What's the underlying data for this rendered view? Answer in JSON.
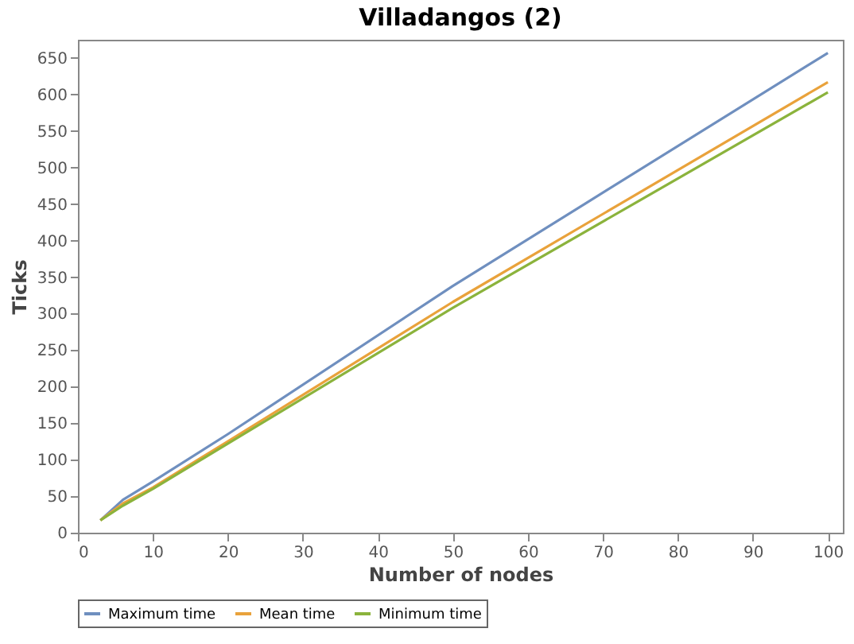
{
  "chart_data": {
    "type": "line",
    "title": "Villadangos (2)",
    "xlabel": "Number of nodes",
    "ylabel": "Ticks",
    "x": [
      3,
      6,
      10,
      20,
      50,
      100
    ],
    "series": [
      {
        "name": "Maximum time",
        "color": "#6f8fbf",
        "values": [
          17,
          45,
          70,
          135,
          338,
          657
        ]
      },
      {
        "name": "Mean time",
        "color": "#e9a23b",
        "values": [
          17,
          40,
          62,
          125,
          316,
          617
        ]
      },
      {
        "name": "Minimum time",
        "color": "#8bb33c",
        "values": [
          17,
          37,
          60,
          122,
          308,
          603
        ]
      }
    ],
    "xlim": [
      0,
      102
    ],
    "ylim": [
      0,
      675
    ],
    "xticks": [
      0,
      10,
      20,
      30,
      40,
      50,
      60,
      70,
      80,
      90,
      100
    ],
    "yticks": [
      0,
      50,
      100,
      150,
      200,
      250,
      300,
      350,
      400,
      450,
      500,
      550,
      600,
      650
    ],
    "grid": false,
    "legend": "bottom",
    "marker": "none",
    "line_style": "solid"
  }
}
